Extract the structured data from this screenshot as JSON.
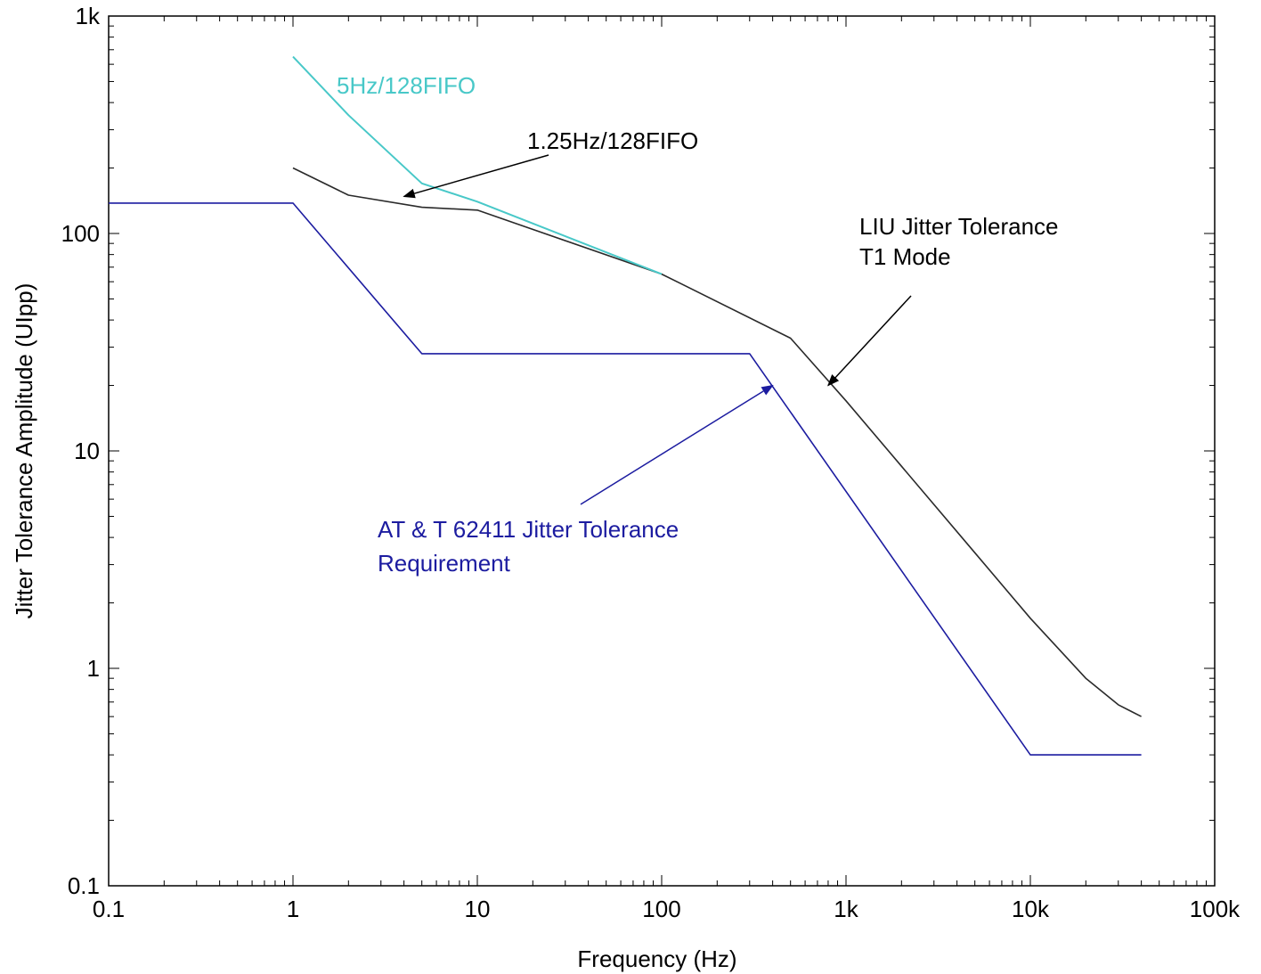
{
  "chart_data": {
    "type": "line",
    "title": "",
    "xlabel": "Frequency (Hz)",
    "ylabel": "Jitter Tolerance Amplitude (UIpp)",
    "xscale": "log",
    "yscale": "log",
    "xlim": [
      0.1,
      100000
    ],
    "ylim": [
      0.1,
      1000
    ],
    "grid": false,
    "x_tick_values": [
      0.1,
      1,
      10,
      100,
      1000,
      10000,
      100000
    ],
    "x_tick_labels": [
      "0.1",
      "1",
      "10",
      "100",
      "1k",
      "10k",
      "100k"
    ],
    "y_tick_values": [
      0.1,
      1,
      10,
      100,
      1000
    ],
    "y_tick_labels": [
      "0.1",
      "1",
      "10",
      "100",
      "1k"
    ],
    "series": [
      {
        "name": "AT & T 62411 Jitter Tolerance Requirement",
        "color": "#1c1ca0",
        "x": [
          0.1,
          1,
          5,
          300,
          10000,
          40000
        ],
        "y": [
          138,
          138,
          28,
          28,
          0.4,
          0.4
        ]
      },
      {
        "name": "1.25Hz/128FIFO",
        "color": "#2a2a2a",
        "x": [
          1,
          2,
          5,
          10,
          100,
          500,
          1000,
          2000,
          5000,
          10000,
          20000,
          30000,
          40000
        ],
        "y": [
          200,
          150,
          132,
          128,
          65,
          33,
          17,
          8.5,
          3.4,
          1.7,
          0.9,
          0.68,
          0.6
        ]
      },
      {
        "name": "5Hz/128FIFO",
        "color": "#48c8c8",
        "x": [
          1,
          2,
          5,
          10,
          100
        ],
        "y": [
          650,
          350,
          170,
          140,
          65
        ]
      }
    ],
    "annotations": [
      {
        "id": "5hz",
        "text": "5Hz/128FIFO",
        "color": "#48c8c8",
        "arrow_to": null
      },
      {
        "id": "125hz",
        "text": "1.25Hz/128FIFO",
        "color": "#000000",
        "arrow_to": [
          4,
          148
        ]
      },
      {
        "id": "liu",
        "text_lines": [
          "LIU Jitter Tolerance",
          "T1 Mode"
        ],
        "color": "#000000",
        "arrow_to": [
          800,
          20
        ]
      },
      {
        "id": "att",
        "text_lines": [
          "AT & T 62411 Jitter Tolerance",
          "Requirement"
        ],
        "color": "#1c1ca0",
        "arrow_to": [
          400,
          20
        ]
      }
    ]
  }
}
